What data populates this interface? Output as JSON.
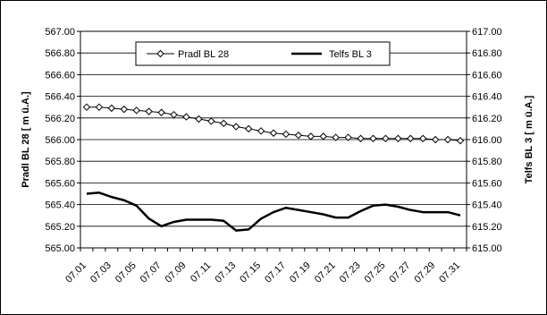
{
  "chart_data": {
    "type": "line",
    "ylabel_left": "Pradl BL 28 [ m ü.A.]",
    "ylabel_right": "Telfs BL 3 [ m ü.A.]",
    "ylim_left": [
      565.0,
      567.0
    ],
    "ylim_right": [
      615.0,
      617.0
    ],
    "ytick_step": 0.2,
    "grid": true,
    "legend_position": "top-center",
    "x": [
      "07.01",
      "07.02",
      "07.03",
      "07.04",
      "07.05",
      "07.06",
      "07.07",
      "07.08",
      "07.09",
      "07.10",
      "07.11",
      "07.12",
      "07.13",
      "07.14",
      "07.15",
      "07.16",
      "07.17",
      "07.18",
      "07.19",
      "07.20",
      "07.21",
      "07.22",
      "07.23",
      "07.24",
      "07.25",
      "07.26",
      "07.27",
      "07.28",
      "07.29",
      "07.30",
      "07.31"
    ],
    "x_tick_labels": [
      "07.01",
      "07.03",
      "07.05",
      "07.07",
      "07.09",
      "07.11",
      "07.13",
      "07.15",
      "07.17",
      "07.19",
      "07.21",
      "07.23",
      "07.25",
      "07.27",
      "07.29",
      "07.31"
    ],
    "series": [
      {
        "name": "Pradl BL 28",
        "axis": "left",
        "marker": "diamond",
        "values": [
          566.3,
          566.3,
          566.29,
          566.28,
          566.27,
          566.26,
          566.25,
          566.23,
          566.21,
          566.19,
          566.17,
          566.15,
          566.12,
          566.1,
          566.08,
          566.06,
          566.05,
          566.04,
          566.03,
          566.03,
          566.02,
          566.02,
          566.01,
          566.01,
          566.01,
          566.01,
          566.01,
          566.01,
          566.0,
          566.0,
          565.99
        ]
      },
      {
        "name": "Telfs BL 3",
        "axis": "right",
        "marker": "none",
        "values": [
          615.5,
          615.51,
          615.47,
          615.44,
          615.39,
          615.27,
          615.2,
          615.24,
          615.26,
          615.26,
          615.26,
          615.25,
          615.16,
          615.17,
          615.27,
          615.33,
          615.37,
          615.35,
          615.33,
          615.31,
          615.28,
          615.28,
          615.34,
          615.39,
          615.4,
          615.38,
          615.35,
          615.33,
          615.33,
          615.33,
          615.3
        ]
      }
    ]
  }
}
